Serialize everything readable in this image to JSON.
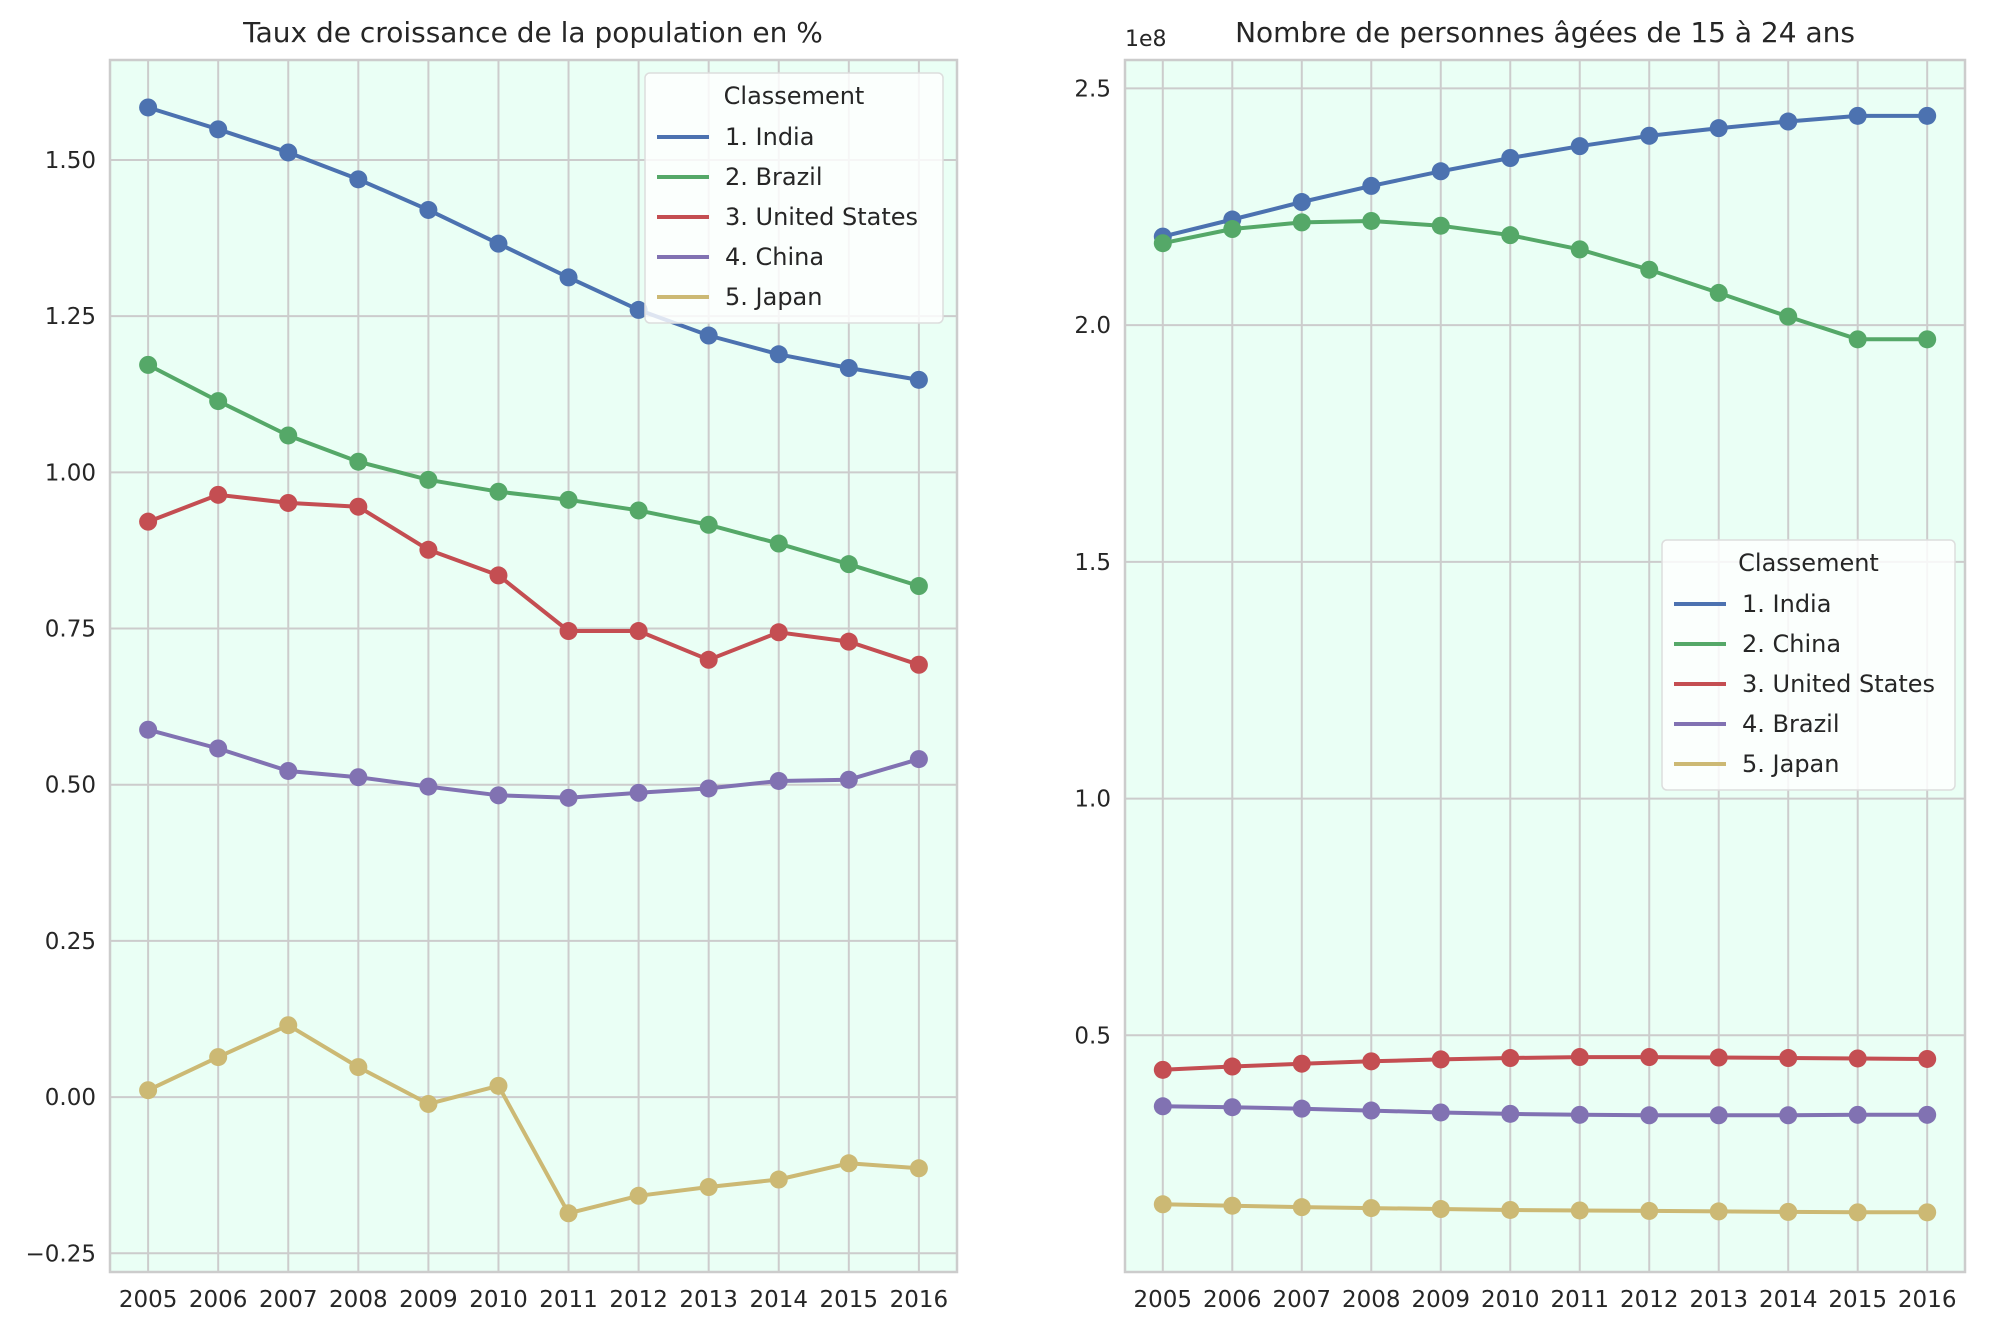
{
  "chart_data": [
    {
      "type": "line",
      "title": "Taux de croissance de la population en %",
      "xlabel": "",
      "ylabel": "",
      "x": [
        2005,
        2006,
        2007,
        2008,
        2009,
        2010,
        2011,
        2012,
        2013,
        2014,
        2015,
        2016
      ],
      "x_tick_labels": [
        "2005",
        "2006",
        "2007",
        "2008",
        "2009",
        "2010",
        "2011",
        "2012",
        "2013",
        "2014",
        "2015",
        "2016"
      ],
      "ylim": [
        -0.28,
        1.66
      ],
      "y_ticks": [
        -0.25,
        0.0,
        0.25,
        0.5,
        0.75,
        1.0,
        1.25,
        1.5
      ],
      "y_tick_labels": [
        "−0.25",
        "0.00",
        "0.25",
        "0.50",
        "0.75",
        "1.00",
        "1.25",
        "1.50"
      ],
      "y_offset_label": "",
      "grid": true,
      "background_color": "#eafff5",
      "legend": {
        "title": "Classement",
        "placement": "top-right"
      },
      "series": [
        {
          "name": "1. India",
          "color": "#4c72b0",
          "values": [
            1.584,
            1.549,
            1.512,
            1.469,
            1.42,
            1.366,
            1.312,
            1.26,
            1.219,
            1.189,
            1.167,
            1.148
          ]
        },
        {
          "name": "2. Brazil",
          "color": "#55a868",
          "values": [
            1.172,
            1.114,
            1.059,
            1.017,
            0.988,
            0.969,
            0.956,
            0.939,
            0.916,
            0.886,
            0.853,
            0.818
          ]
        },
        {
          "name": "3. United States",
          "color": "#c44e52",
          "values": [
            0.921,
            0.964,
            0.951,
            0.945,
            0.876,
            0.835,
            0.746,
            0.746,
            0.7,
            0.744,
            0.729,
            0.692
          ]
        },
        {
          "name": "4. China",
          "color": "#8172b2",
          "values": [
            0.588,
            0.558,
            0.522,
            0.512,
            0.497,
            0.483,
            0.479,
            0.487,
            0.494,
            0.506,
            0.508,
            0.541
          ]
        },
        {
          "name": "5. Japan",
          "color": "#ccb974",
          "values": [
            0.011,
            0.064,
            0.115,
            0.048,
            -0.011,
            0.018,
            -0.186,
            -0.158,
            -0.144,
            -0.132,
            -0.106,
            -0.114
          ]
        }
      ]
    },
    {
      "type": "line",
      "title": "Nombre de personnes âgées de 15 à 24 ans",
      "xlabel": "",
      "ylabel": "",
      "x": [
        2005,
        2006,
        2007,
        2008,
        2009,
        2010,
        2011,
        2012,
        2013,
        2014,
        2015,
        2016
      ],
      "x_tick_labels": [
        "2005",
        "2006",
        "2007",
        "2008",
        "2009",
        "2010",
        "2011",
        "2012",
        "2013",
        "2014",
        "2015",
        "2016"
      ],
      "ylim": [
        0.0,
        2.56
      ],
      "y_ticks": [
        0.5,
        1.0,
        1.5,
        2.0,
        2.5
      ],
      "y_tick_labels": [
        "0.5",
        "1.0",
        "1.5",
        "2.0",
        "2.5"
      ],
      "y_offset_label": "1e8",
      "grid": true,
      "background_color": "#eafff5",
      "legend": {
        "title": "Classement",
        "placement": "center-right"
      },
      "series": [
        {
          "name": "1. India",
          "color": "#4c72b0",
          "values": [
            2.187,
            2.223,
            2.26,
            2.294,
            2.325,
            2.353,
            2.378,
            2.4,
            2.416,
            2.43,
            2.442,
            2.442
          ]
        },
        {
          "name": "2. China",
          "color": "#55a868",
          "values": [
            2.173,
            2.203,
            2.217,
            2.22,
            2.21,
            2.19,
            2.16,
            2.117,
            2.068,
            2.018,
            1.97,
            1.97
          ]
        },
        {
          "name": "3. United States",
          "color": "#c44e52",
          "values": [
            0.427,
            0.434,
            0.44,
            0.445,
            0.449,
            0.452,
            0.454,
            0.454,
            0.453,
            0.452,
            0.451,
            0.45
          ]
        },
        {
          "name": "4. Brazil",
          "color": "#8172b2",
          "values": [
            0.35,
            0.348,
            0.345,
            0.341,
            0.337,
            0.334,
            0.332,
            0.331,
            0.331,
            0.331,
            0.332,
            0.332
          ]
        },
        {
          "name": "5. Japan",
          "color": "#ccb974",
          "values": [
            0.143,
            0.14,
            0.137,
            0.135,
            0.133,
            0.131,
            0.13,
            0.129,
            0.128,
            0.127,
            0.126,
            0.126
          ]
        }
      ]
    }
  ]
}
